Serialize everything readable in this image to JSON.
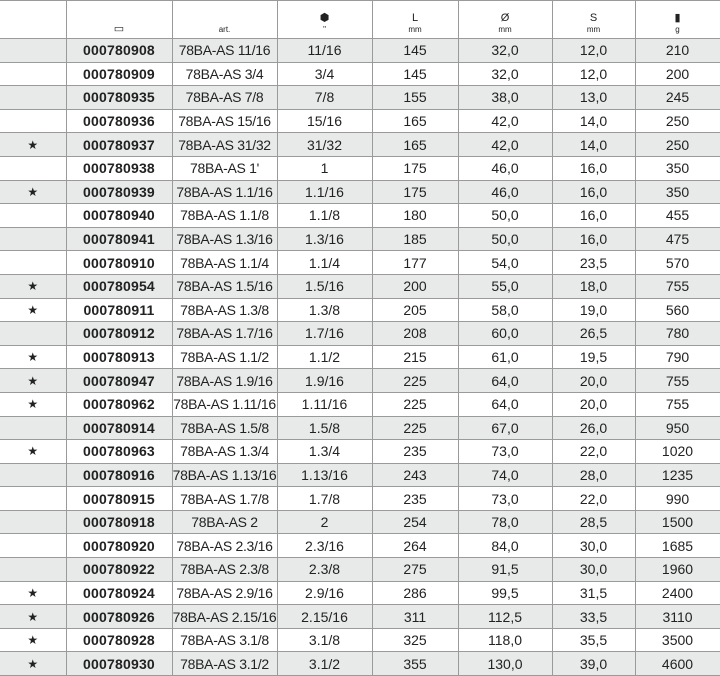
{
  "header": {
    "art": "art.",
    "size_unit": "\"",
    "L": "L",
    "L_unit": "mm",
    "D": "Ø",
    "D_unit": "mm",
    "S": "S",
    "S_unit": "mm",
    "g": "g"
  },
  "icons": {
    "code": "catalog-code-icon",
    "size": "socket-icon",
    "weight": "weight-icon",
    "marker": "star-icon"
  },
  "rows": [
    [
      "",
      "000780908",
      "78BA-AS 11/16",
      "11/16",
      "145",
      "32,0",
      "12,0",
      "210"
    ],
    [
      "",
      "000780909",
      "78BA-AS 3/4",
      "3/4",
      "145",
      "32,0",
      "12,0",
      "200"
    ],
    [
      "",
      "000780935",
      "78BA-AS 7/8",
      "7/8",
      "155",
      "38,0",
      "13,0",
      "245"
    ],
    [
      "",
      "000780936",
      "78BA-AS 15/16",
      "15/16",
      "165",
      "42,0",
      "14,0",
      "250"
    ],
    [
      "★",
      "000780937",
      "78BA-AS 31/32",
      "31/32",
      "165",
      "42,0",
      "14,0",
      "250"
    ],
    [
      "",
      "000780938",
      "78BA-AS 1'",
      "1",
      "175",
      "46,0",
      "16,0",
      "350"
    ],
    [
      "★",
      "000780939",
      "78BA-AS 1.1/16",
      "1.1/16",
      "175",
      "46,0",
      "16,0",
      "350"
    ],
    [
      "",
      "000780940",
      "78BA-AS 1.1/8",
      "1.1/8",
      "180",
      "50,0",
      "16,0",
      "455"
    ],
    [
      "",
      "000780941",
      "78BA-AS 1.3/16",
      "1.3/16",
      "185",
      "50,0",
      "16,0",
      "475"
    ],
    [
      "",
      "000780910",
      "78BA-AS 1.1/4",
      "1.1/4",
      "177",
      "54,0",
      "23,5",
      "570"
    ],
    [
      "★",
      "000780954",
      "78BA-AS 1.5/16",
      "1.5/16",
      "200",
      "55,0",
      "18,0",
      "755"
    ],
    [
      "★",
      "000780911",
      "78BA-AS 1.3/8",
      "1.3/8",
      "205",
      "58,0",
      "19,0",
      "560"
    ],
    [
      "",
      "000780912",
      "78BA-AS 1.7/16",
      "1.7/16",
      "208",
      "60,0",
      "26,5",
      "780"
    ],
    [
      "★",
      "000780913",
      "78BA-AS 1.1/2",
      "1.1/2",
      "215",
      "61,0",
      "19,5",
      "790"
    ],
    [
      "★",
      "000780947",
      "78BA-AS 1.9/16",
      "1.9/16",
      "225",
      "64,0",
      "20,0",
      "755"
    ],
    [
      "★",
      "000780962",
      "78BA-AS 1.11/16",
      "1.11/16",
      "225",
      "64,0",
      "20,0",
      "755"
    ],
    [
      "",
      "000780914",
      "78BA-AS 1.5/8",
      "1.5/8",
      "225",
      "67,0",
      "26,0",
      "950"
    ],
    [
      "★",
      "000780963",
      "78BA-AS 1.3/4",
      "1.3/4",
      "235",
      "73,0",
      "22,0",
      "1020"
    ],
    [
      "",
      "000780916",
      "78BA-AS 1.13/16",
      "1.13/16",
      "243",
      "74,0",
      "28,0",
      "1235"
    ],
    [
      "",
      "000780915",
      "78BA-AS 1.7/8",
      "1.7/8",
      "235",
      "73,0",
      "22,0",
      "990"
    ],
    [
      "",
      "000780918",
      "78BA-AS 2",
      "2",
      "254",
      "78,0",
      "28,5",
      "1500"
    ],
    [
      "",
      "000780920",
      "78BA-AS 2.3/16",
      "2.3/16",
      "264",
      "84,0",
      "30,0",
      "1685"
    ],
    [
      "",
      "000780922",
      "78BA-AS 2.3/8",
      "2.3/8",
      "275",
      "91,5",
      "30,0",
      "1960"
    ],
    [
      "★",
      "000780924",
      "78BA-AS 2.9/16",
      "2.9/16",
      "286",
      "99,5",
      "31,5",
      "2400"
    ],
    [
      "★",
      "000780926",
      "78BA-AS 2.15/16",
      "2.15/16",
      "311",
      "112,5",
      "33,5",
      "3110"
    ],
    [
      "★",
      "000780928",
      "78BA-AS 3.1/8",
      "3.1/8",
      "325",
      "118,0",
      "35,5",
      "3500"
    ],
    [
      "★",
      "000780930",
      "78BA-AS 3.1/2",
      "3.1/2",
      "355",
      "130,0",
      "39,0",
      "4600"
    ]
  ]
}
